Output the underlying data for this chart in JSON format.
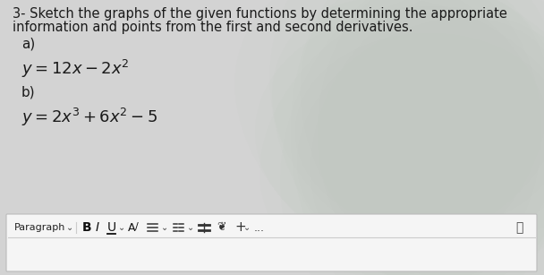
{
  "background_color": "#d3d3d3",
  "text_color": "#1a1a1a",
  "title_line1": "3- Sketch the graphs of the given functions by determining the appropriate",
  "title_line2": "information and points from the first and second derivatives.",
  "title_fontsize": 10.5,
  "label_a": "a)",
  "label_b": "b)",
  "eq_a": "$y = 12x - 2x^2$",
  "eq_b": "$y = 2x^3 + 6x^2 - 5$",
  "label_fontsize": 11,
  "eq_fontsize": 13,
  "toolbar_bg": "#f5f5f5",
  "toolbar_border": "#bbbbbb",
  "toolbar_separator": "#cccccc",
  "figsize": [
    6.08,
    3.07
  ],
  "dpi": 100
}
